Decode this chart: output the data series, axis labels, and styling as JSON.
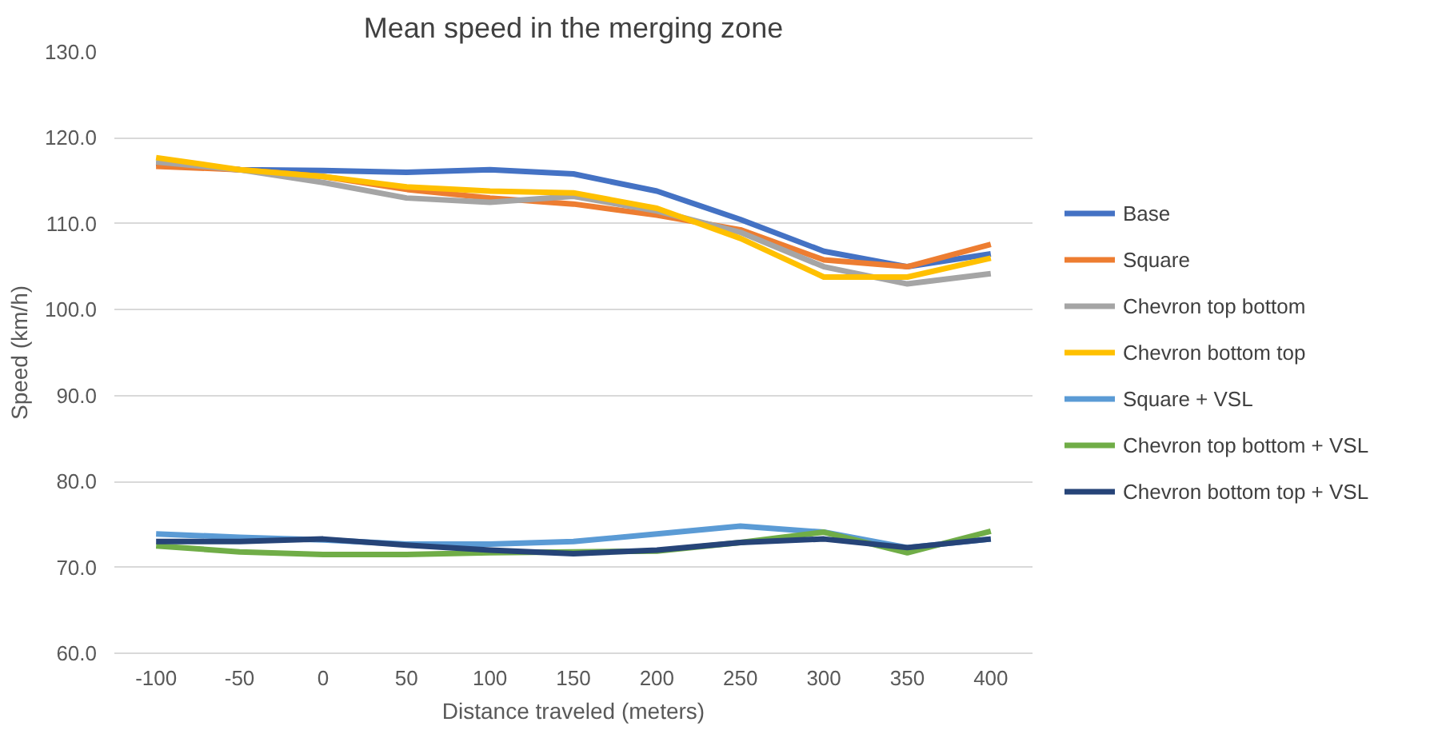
{
  "chart_data": {
    "type": "line",
    "title": "Mean speed in the merging zone",
    "xlabel": "Distance traveled (meters)",
    "ylabel": "Speed (km/h)",
    "categories": [
      "-100",
      "-50",
      "0",
      "50",
      "100",
      "150",
      "200",
      "250",
      "300",
      "350",
      "400"
    ],
    "ylim": [
      60,
      130
    ],
    "yticks": [
      {
        "value": 60,
        "label": "60.0"
      },
      {
        "value": 70,
        "label": "70.0"
      },
      {
        "value": 80,
        "label": "80.0"
      },
      {
        "value": 90,
        "label": "90.0"
      },
      {
        "value": 100,
        "label": "100.0"
      },
      {
        "value": 110,
        "label": "110.0"
      },
      {
        "value": 120,
        "label": "120.0"
      },
      {
        "value": 130,
        "label": "130.0"
      }
    ],
    "grid": "y",
    "legend": "right",
    "marker": "none",
    "line_style": "solid",
    "series": [
      {
        "name": "Base",
        "color": "#4472c4",
        "values": [
          117.0,
          116.3,
          116.2,
          116.0,
          116.3,
          115.8,
          113.8,
          110.5,
          106.8,
          105.0,
          106.5
        ]
      },
      {
        "name": "Square",
        "color": "#ed7d31",
        "values": [
          116.7,
          116.3,
          115.5,
          114.0,
          113.0,
          112.3,
          111.0,
          109.3,
          105.8,
          105.0,
          107.6
        ]
      },
      {
        "name": "Chevron top bottom",
        "color": "#a5a5a5",
        "values": [
          117.2,
          116.3,
          114.8,
          113.0,
          112.5,
          113.2,
          111.5,
          109.0,
          105.0,
          103.0,
          104.2
        ]
      },
      {
        "name": "Chevron bottom top",
        "color": "#ffc000",
        "values": [
          117.7,
          116.3,
          115.5,
          114.3,
          113.8,
          113.6,
          111.8,
          108.3,
          103.8,
          103.8,
          106.0
        ]
      },
      {
        "name": "Square + VSL",
        "color": "#5b9bd5",
        "values": [
          73.9,
          73.5,
          73.2,
          72.7,
          72.7,
          73.0,
          73.9,
          74.8,
          74.1,
          72.3,
          73.3
        ]
      },
      {
        "name": "Chevron top bottom + VSL",
        "color": "#70ad47",
        "values": [
          72.5,
          71.8,
          71.5,
          71.5,
          71.7,
          71.8,
          71.9,
          72.9,
          74.1,
          71.7,
          74.2
        ]
      },
      {
        "name": "Chevron bottom top + VSL",
        "color": "#264478",
        "values": [
          73.0,
          73.0,
          73.3,
          72.6,
          72.0,
          71.6,
          72.0,
          72.9,
          73.3,
          72.3,
          73.3
        ]
      }
    ]
  }
}
